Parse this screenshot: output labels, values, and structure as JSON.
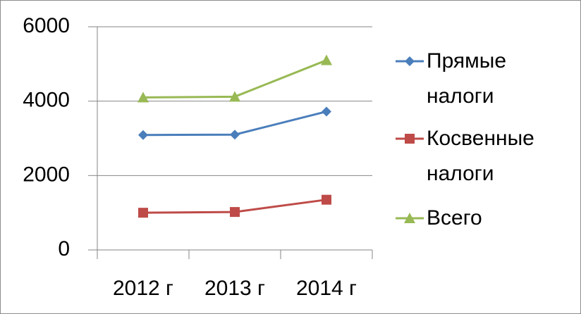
{
  "chart_data": {
    "type": "line",
    "categories": [
      "2012 г",
      "2013 г",
      "2014 г"
    ],
    "series": [
      {
        "name": "Прямые налоги",
        "color": "#4a7ebb",
        "marker": "diamond",
        "values": [
          3090,
          3100,
          3720
        ]
      },
      {
        "name": "Косвенные налоги",
        "color": "#be4b48",
        "marker": "square",
        "values": [
          1000,
          1020,
          1350
        ]
      },
      {
        "name": "Всего",
        "color": "#98b954",
        "marker": "triangle",
        "values": [
          4100,
          4120,
          5100
        ]
      }
    ],
    "ylim": [
      0,
      6000
    ],
    "yticks": [
      0,
      2000,
      4000,
      6000
    ],
    "grid": true,
    "legend": "right"
  }
}
